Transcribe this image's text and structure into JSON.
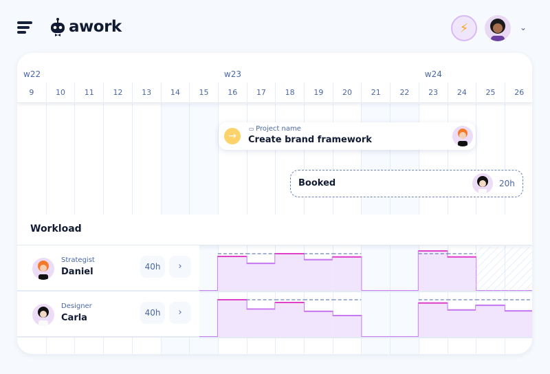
{
  "app": {
    "logo_text": "awork",
    "menu_icon": "hamburger-icon",
    "boost_icon": "lightning-icon",
    "chevron": "⌄"
  },
  "colors": {
    "accent": "#e03fc8",
    "fill": "#f1e4fd",
    "line": "#c77af0",
    "dashed": "#6b82b3",
    "yellow": "#fcd36b"
  },
  "timeline": {
    "weeks": [
      {
        "label": "w22",
        "start_day": "9"
      },
      {
        "label": "w23",
        "start_day": "16"
      },
      {
        "label": "w24",
        "start_day": "23"
      }
    ],
    "days": [
      "9",
      "10",
      "11",
      "12",
      "13",
      "14",
      "15",
      "16",
      "17",
      "18",
      "19",
      "20",
      "21",
      "22",
      "23",
      "24",
      "25",
      "26"
    ],
    "weekend_days": [
      "14",
      "15",
      "21",
      "22"
    ]
  },
  "task": {
    "project_label": "Project name",
    "title": "Create brand framework",
    "icon": "arrow-right-icon"
  },
  "booking": {
    "label": "Booked",
    "hours": "20h"
  },
  "workload": {
    "title": "Workload",
    "capacity_hours_per_day": 8,
    "people": [
      {
        "role": "Strategist",
        "name": "Daniel",
        "capacity": "40h",
        "hours": [
          0,
          0,
          0,
          0,
          0,
          0,
          0,
          7.4,
          5.9,
          8,
          6.7,
          7.3,
          0,
          0,
          8.6,
          7.3,
          0,
          0
        ],
        "unavailable_days": [
          "25",
          "26"
        ]
      },
      {
        "role": "Designer",
        "name": "Carla",
        "capacity": "40h",
        "hours": [
          0,
          0,
          0,
          0,
          0,
          0,
          0,
          8,
          6,
          7.4,
          5.5,
          4.6,
          0,
          0,
          7.3,
          5.8,
          6.8,
          5.6
        ],
        "unavailable_days": []
      }
    ]
  }
}
